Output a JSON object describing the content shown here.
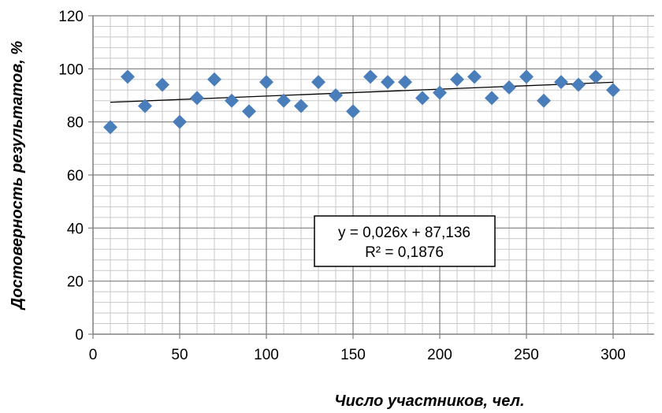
{
  "chart_data": {
    "type": "scatter",
    "title": "",
    "xlabel": "Число участников, чел.",
    "ylabel": "Достоверность результатов, %",
    "xlim": [
      0,
      300
    ],
    "ylim": [
      0,
      120
    ],
    "x_ticks": [
      0,
      50,
      100,
      150,
      200,
      250,
      300
    ],
    "y_ticks": [
      0,
      20,
      40,
      60,
      80,
      100,
      120
    ],
    "grid": true,
    "marker": "diamond",
    "marker_color": "#4a7ebb",
    "series": [
      {
        "x": [
          10,
          20,
          30,
          40,
          50,
          60,
          70,
          80,
          90,
          100,
          110,
          120,
          130,
          140,
          150,
          160,
          170,
          180,
          190,
          200,
          210,
          220,
          230,
          240,
          250,
          260,
          270,
          280,
          290,
          300
        ],
        "y": [
          78,
          97,
          86,
          94,
          80,
          89,
          96,
          88,
          84,
          95,
          88,
          86,
          95,
          90,
          84,
          97,
          95,
          95,
          89,
          91,
          96,
          97,
          89,
          93,
          97,
          88,
          95,
          94,
          97,
          92
        ]
      }
    ],
    "trendline": {
      "slope": 0.026,
      "intercept": 87.136,
      "x_range": [
        10,
        300
      ],
      "equation_label": "y = 0,026x + 87,136",
      "r2_label": "R² = 0,1876"
    }
  }
}
